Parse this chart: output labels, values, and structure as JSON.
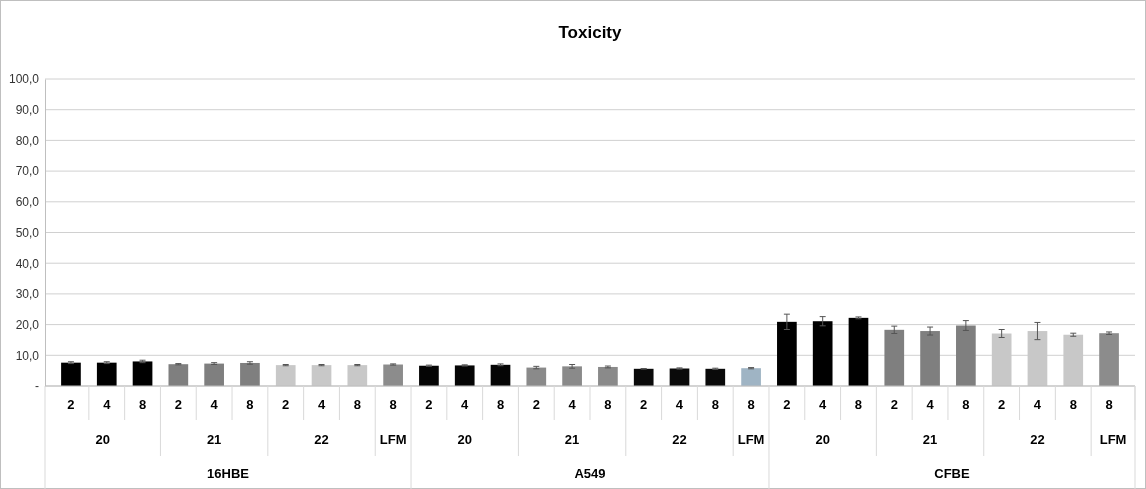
{
  "chart_data": {
    "type": "bar",
    "title": "Toxicity",
    "categories": [
      "2",
      "4",
      "8",
      "2",
      "4",
      "8",
      "2",
      "4",
      "8",
      "8",
      "2",
      "4",
      "8",
      "2",
      "4",
      "8",
      "2",
      "4",
      "8",
      "8",
      "2",
      "4",
      "8",
      "2",
      "4",
      "8",
      "2",
      "4",
      "8",
      "8"
    ],
    "values": [
      7.6,
      7.6,
      8.0,
      7.1,
      7.3,
      7.5,
      6.8,
      6.8,
      6.8,
      7.0,
      6.6,
      6.7,
      6.9,
      6.0,
      6.4,
      6.2,
      5.6,
      5.7,
      5.6,
      5.8,
      20.9,
      21.1,
      22.2,
      18.3,
      17.9,
      19.7,
      17.1,
      17.9,
      16.7,
      17.2
    ],
    "errors": [
      0.3,
      0.3,
      0.4,
      0.2,
      0.3,
      0.4,
      0.2,
      0.2,
      0.2,
      0.2,
      0.2,
      0.2,
      0.3,
      0.4,
      0.6,
      0.3,
      0.1,
      0.2,
      0.2,
      0.2,
      2.5,
      1.5,
      0.3,
      1.2,
      1.3,
      1.6,
      1.3,
      2.8,
      0.5,
      0.4
    ],
    "colors": [
      "#000000",
      "#000000",
      "#000000",
      "#7f7f7f",
      "#7f7f7f",
      "#7f7f7f",
      "#c8c8c8",
      "#c8c8c8",
      "#c8c8c8",
      "#8c8c8c",
      "#050505",
      "#050505",
      "#050505",
      "#8a8a8a",
      "#8a8a8a",
      "#8a8a8a",
      "#0a0a0a",
      "#0a0a0a",
      "#0a0a0a",
      "#9fb4c4",
      "#000000",
      "#000000",
      "#000000",
      "#7f7f7f",
      "#7f7f7f",
      "#7f7f7f",
      "#c8c8c8",
      "#c8c8c8",
      "#c8c8c8",
      "#8c8c8c"
    ],
    "ylim": [
      0,
      100
    ],
    "yticks": [
      {
        "value": 0,
        "label": "-"
      },
      {
        "value": 10,
        "label": "10,0"
      },
      {
        "value": 20,
        "label": "20,0"
      },
      {
        "value": 30,
        "label": "30,0"
      },
      {
        "value": 40,
        "label": "40,0"
      },
      {
        "value": 50,
        "label": "50,0"
      },
      {
        "value": 60,
        "label": "60,0"
      },
      {
        "value": 70,
        "label": "70,0"
      },
      {
        "value": 80,
        "label": "80,0"
      },
      {
        "value": 90,
        "label": "90,0"
      },
      {
        "value": 100,
        "label": "100,0"
      }
    ],
    "grid": "y",
    "annotations": [
      "20",
      "21",
      "22",
      "LFM",
      "20",
      "21",
      "22",
      "LFM",
      "20",
      "21",
      "22",
      "LFM",
      "16HBE",
      "A549",
      "CFBE"
    ]
  }
}
